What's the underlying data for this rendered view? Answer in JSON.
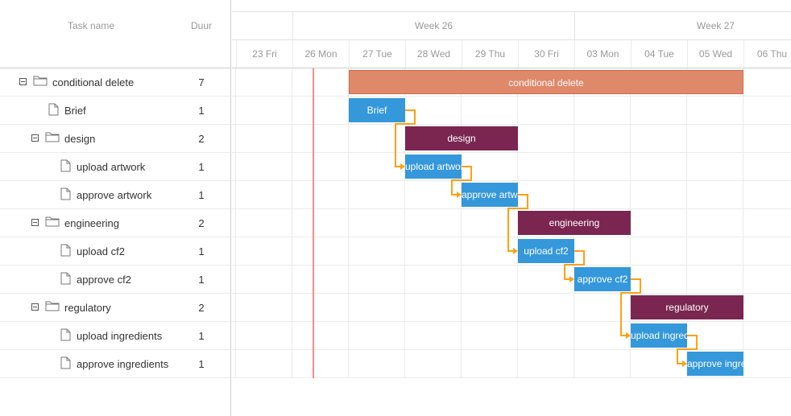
{
  "grid": {
    "columns": {
      "task_name": "Task name",
      "duration": "Duur"
    },
    "rows": [
      {
        "label": "conditional delete",
        "duration": "7",
        "type": "project",
        "level": 0
      },
      {
        "label": "Brief",
        "duration": "1",
        "type": "task",
        "level": 1
      },
      {
        "label": "design",
        "duration": "2",
        "type": "project",
        "level": 1
      },
      {
        "label": "upload artwork",
        "duration": "1",
        "type": "task",
        "level": 2
      },
      {
        "label": "approve artwork",
        "duration": "1",
        "type": "task",
        "level": 2
      },
      {
        "label": "engineering",
        "duration": "2",
        "type": "project",
        "level": 1
      },
      {
        "label": "upload cf2",
        "duration": "1",
        "type": "task",
        "level": 2
      },
      {
        "label": "approve cf2",
        "duration": "1",
        "type": "task",
        "level": 2
      },
      {
        "label": "regulatory",
        "duration": "2",
        "type": "project",
        "level": 1
      },
      {
        "label": "upload ingredients",
        "duration": "1",
        "type": "task",
        "level": 2
      },
      {
        "label": "approve ingredients",
        "duration": "1",
        "type": "task",
        "level": 2
      }
    ]
  },
  "timeline": {
    "weeks": [
      "Week 26",
      "Week 27"
    ],
    "days": [
      "23 Fri",
      "26 Mon",
      "27 Tue",
      "28 Wed",
      "29 Thu",
      "30 Fri",
      "03 Mon",
      "04 Tue",
      "05 Wed",
      "06 Thu"
    ],
    "bars": [
      {
        "label": "conditional delete",
        "row": 0,
        "start_day": "27 Tue",
        "duration": 7,
        "kind": "root"
      },
      {
        "label": "Brief",
        "row": 1,
        "start_day": "27 Tue",
        "duration": 1,
        "kind": "task"
      },
      {
        "label": "design",
        "row": 2,
        "start_day": "28 Wed",
        "duration": 2,
        "kind": "project"
      },
      {
        "label": "upload artwork",
        "row": 3,
        "start_day": "28 Wed",
        "duration": 1,
        "kind": "task"
      },
      {
        "label": "approve artwork",
        "row": 4,
        "start_day": "29 Thu",
        "duration": 1,
        "kind": "task"
      },
      {
        "label": "engineering",
        "row": 5,
        "start_day": "30 Fri",
        "duration": 2,
        "kind": "project"
      },
      {
        "label": "upload cf2",
        "row": 6,
        "start_day": "30 Fri",
        "duration": 1,
        "kind": "task"
      },
      {
        "label": "approve cf2",
        "row": 7,
        "start_day": "03 Mon",
        "duration": 1,
        "kind": "task"
      },
      {
        "label": "regulatory",
        "row": 8,
        "start_day": "04 Tue",
        "duration": 2,
        "kind": "project"
      },
      {
        "label": "upload ingredients",
        "row": 9,
        "start_day": "04 Tue",
        "duration": 1,
        "kind": "task"
      },
      {
        "label": "approve ingredients",
        "row": 10,
        "start_day": "05 Wed",
        "duration": 1,
        "kind": "task"
      }
    ],
    "links": [
      [
        1,
        3
      ],
      [
        3,
        4
      ],
      [
        4,
        6
      ],
      [
        6,
        7
      ],
      [
        7,
        9
      ],
      [
        9,
        10
      ]
    ],
    "colors": {
      "task": "#3498db",
      "project": "#7a2650",
      "root": "#e0886a",
      "link": "#ffa011",
      "today": "#ff8a8a"
    }
  }
}
